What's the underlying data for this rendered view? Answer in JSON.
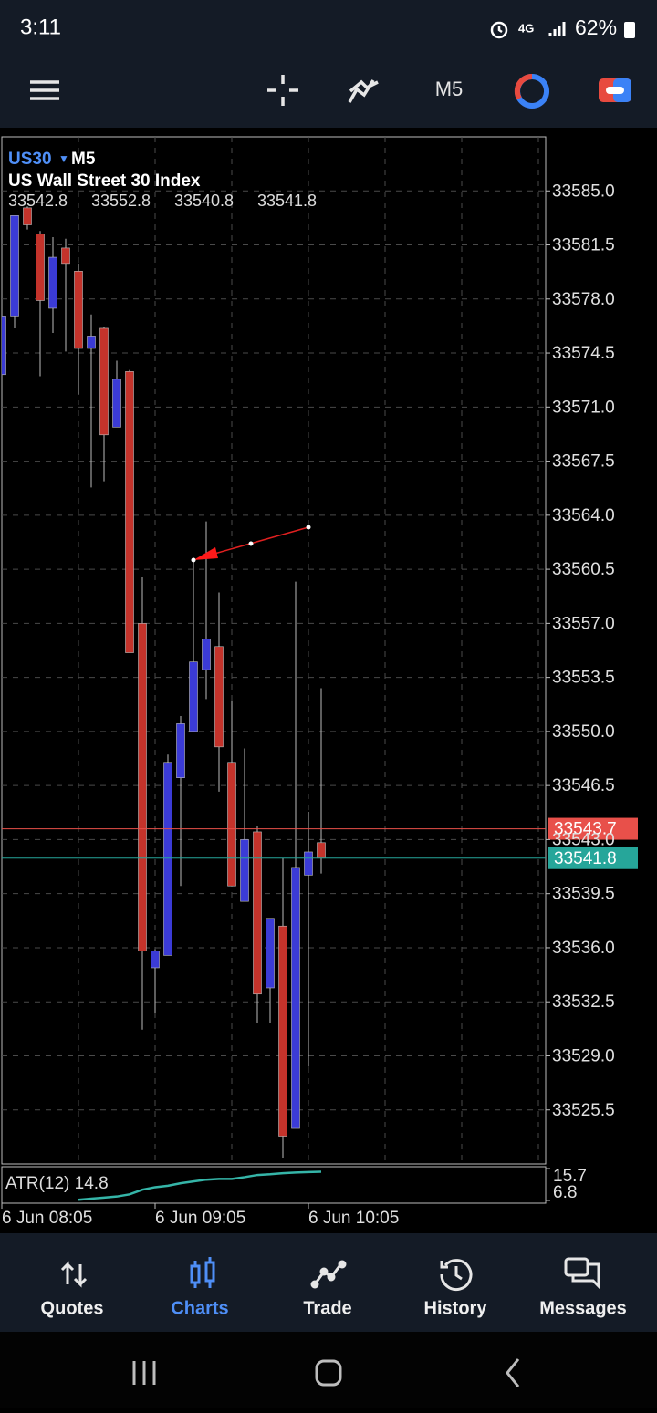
{
  "status_bar": {
    "time": "3:11",
    "battery": "62%"
  },
  "toolbar": {
    "timeframe": "M5"
  },
  "chart_data": [
    {
      "type": "candlestick",
      "title": "US30",
      "timeframe": "M5",
      "subtitle": "US Wall Street 30 Index",
      "categories": [
        "6 Jun 08:05",
        null,
        null,
        null,
        null,
        null,
        null,
        null,
        null,
        null,
        null,
        null,
        "6 Jun 09:05",
        null,
        null,
        null,
        null,
        null,
        null,
        null,
        null,
        null,
        null,
        null,
        "6 Jun 10:05",
        null
      ],
      "open": [
        33573.1,
        33576.9,
        33583.9,
        33582.2,
        33577.4,
        33581.3,
        33579.8,
        33574.8,
        33576.1,
        33569.7,
        33573.3,
        33557.0,
        33534.7,
        33535.5,
        33547.0,
        33550.0,
        33554.0,
        33555.5,
        33548.0,
        33539.0,
        33543.5,
        33533.4,
        33537.4,
        33524.3,
        33540.7,
        33542.8
      ],
      "high": [
        33576.9,
        33583.4,
        33584.0,
        33582.4,
        33582.0,
        33581.9,
        33580.3,
        33577.0,
        33576.2,
        33574.0,
        33573.4,
        33560.0,
        33535.9,
        33548.5,
        33551.0,
        33561.2,
        33563.6,
        33559.0,
        33552.0,
        33548.9,
        33543.9,
        33537.9,
        33541.8,
        33559.7,
        33544.8,
        33552.8
      ],
      "low": [
        33572.0,
        33576.1,
        33582.5,
        33573.0,
        33575.8,
        33574.6,
        33571.8,
        33565.8,
        33566.2,
        33569.7,
        33555.1,
        33530.7,
        33531.8,
        33535.5,
        33540.0,
        33550.0,
        33552.1,
        33546.1,
        33540.0,
        33539.0,
        33531.1,
        33531.1,
        33522.4,
        33524.3,
        33528.3,
        33540.8
      ],
      "close": [
        33576.9,
        33583.4,
        33582.8,
        33577.9,
        33580.7,
        33580.3,
        33574.8,
        33575.6,
        33569.2,
        33572.8,
        33555.1,
        33535.8,
        33535.8,
        33548.0,
        33550.5,
        33554.5,
        33556.0,
        33549.0,
        33540.0,
        33543.0,
        33533.0,
        33537.9,
        33523.8,
        33541.2,
        33542.2,
        33541.8
      ],
      "up_color": "#3b3bd6",
      "down_color": "#c4332b",
      "ylim": [
        33522.0,
        33588.5
      ],
      "yticks": [
        {
          "value": 33585,
          "label": "33585.0"
        },
        33581.5,
        {
          "value": 33578,
          "label": "33578.0"
        },
        33574.5,
        {
          "value": 33571,
          "label": "33571.0"
        },
        33567.5,
        {
          "value": 33564,
          "label": "33564.0"
        },
        33560.5,
        {
          "value": 33557,
          "label": "33557.0"
        },
        33553.5,
        {
          "value": 33550,
          "label": "33550.0"
        },
        33546.5,
        {
          "value": 33543,
          "label": "33543.0"
        },
        33539.5,
        {
          "value": 33536,
          "label": "33536.0"
        },
        33532.5,
        {
          "value": 33529,
          "label": "33529.0"
        },
        33525.5
      ],
      "grid": true,
      "price_lines": [
        {
          "value": 33543.7,
          "color": "#e8504a"
        },
        {
          "value": 33541.8,
          "color": "#26a69a"
        }
      ]
    },
    {
      "type": "line",
      "title": "ATR(12) 14.8",
      "color": "#35b5a8",
      "values": [
        null,
        null,
        null,
        null,
        null,
        null,
        7.0,
        7.3,
        7.6,
        7.9,
        8.5,
        9.8,
        10.5,
        10.9,
        11.6,
        12.1,
        12.6,
        12.8,
        12.8,
        13.3,
        13.9,
        14.1,
        14.4,
        14.6,
        14.7,
        14.8
      ],
      "ylim": [
        6.8,
        15.7
      ],
      "yticks": [
        15.7,
        6.8
      ]
    }
  ],
  "nav": {
    "items": [
      "Quotes",
      "Charts",
      "Trade",
      "History",
      "Messages"
    ],
    "active": 1,
    "active_color": "#4f8ff7"
  }
}
